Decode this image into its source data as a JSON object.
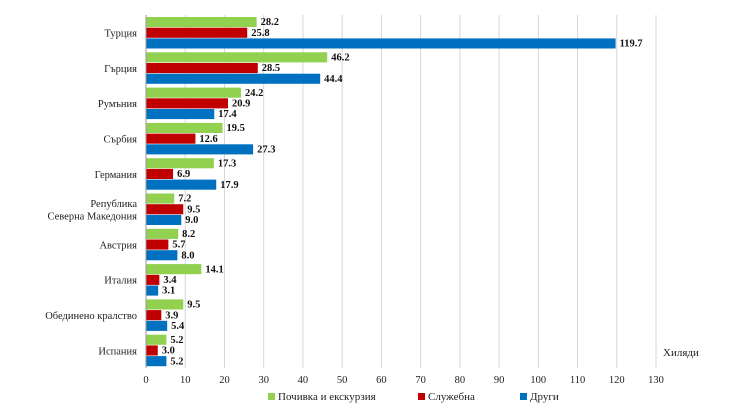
{
  "chart_data": {
    "type": "bar",
    "orientation": "horizontal",
    "unit_label": "Хиляди",
    "categories": [
      "Турция",
      "Гърция",
      "Румъния",
      "Сърбия",
      "Германия",
      [
        "Република",
        "Северна Македония"
      ],
      "Австрия",
      "Италия",
      "Обединено кралство",
      "Испания"
    ],
    "series": [
      {
        "name": "Почивка и екскурзия",
        "color": "#92d050",
        "values": [
          28.2,
          46.2,
          24.2,
          19.5,
          17.3,
          7.2,
          8.2,
          14.1,
          9.5,
          5.2
        ],
        "labels": [
          "28.2",
          "46.2",
          "24.2",
          "19.5",
          "17.3",
          "7.2",
          "8.2",
          "14.1",
          "9.5",
          "5.2"
        ]
      },
      {
        "name": "Служебна",
        "color": "#c00000",
        "values": [
          25.8,
          28.5,
          20.9,
          12.6,
          6.9,
          9.5,
          5.7,
          3.4,
          3.9,
          3.0
        ],
        "labels": [
          "25.8",
          "28.5",
          "20.9",
          "12.6",
          "6.9",
          "9.5",
          "5.7",
          "3.4",
          "3.9",
          "3.0"
        ]
      },
      {
        "name": "Други",
        "color": "#0070c0",
        "values": [
          119.7,
          44.4,
          17.4,
          27.3,
          17.9,
          9.0,
          8.0,
          3.1,
          5.4,
          5.2
        ],
        "labels": [
          "119.7",
          "44.4",
          "17.4",
          "27.3",
          "17.9",
          "9.0",
          "8.0",
          "3.1",
          "5.4",
          "5.2"
        ]
      }
    ],
    "xlim": [
      0,
      130
    ],
    "xticks": [
      "0",
      "10",
      "20",
      "30",
      "40",
      "50",
      "60",
      "70",
      "80",
      "90",
      "100",
      "110",
      "120",
      "130"
    ],
    "legend_position": "bottom"
  }
}
